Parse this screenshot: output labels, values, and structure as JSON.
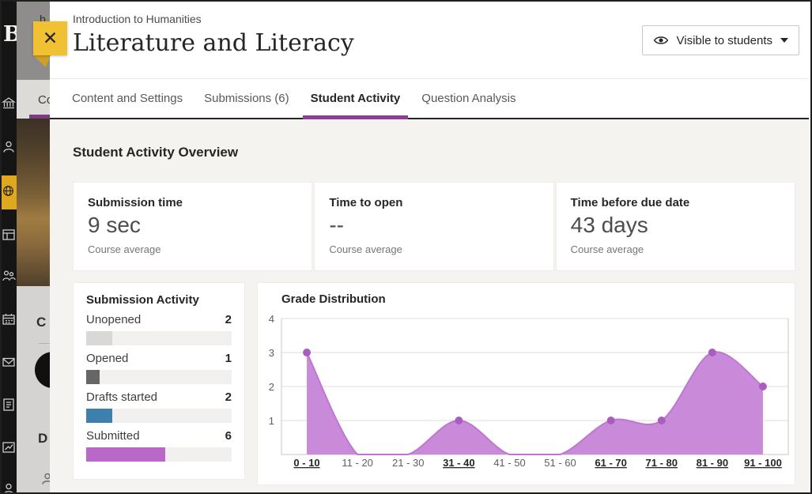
{
  "header": {
    "course_name": "Introduction to Humanities",
    "title": "Literature and Literacy",
    "visibility_button": {
      "label": "Visible to students",
      "icon": "eye-icon",
      "caret": "chevron-down-icon"
    },
    "close_button": {
      "icon": "close-x-icon",
      "glyph": "✕",
      "color": "#f0c233"
    }
  },
  "tabs": [
    {
      "label": "Content and Settings",
      "active": false
    },
    {
      "label": "Submissions (6)",
      "active": false
    },
    {
      "label": "Student Activity",
      "active": true
    },
    {
      "label": "Question Analysis",
      "active": false
    }
  ],
  "accent_colors": {
    "tab_underline": "#8c3f95",
    "tab_bar_line": "#262626",
    "content_bg": "#f5f3f0"
  },
  "overview": {
    "heading": "Student Activity Overview",
    "stats": [
      {
        "label": "Submission time",
        "value": "9 sec",
        "caption": "Course average"
      },
      {
        "label": "Time to open",
        "value": "--",
        "caption": "Course average"
      },
      {
        "label": "Time before due date",
        "value": "43 days",
        "caption": "Course average"
      }
    ]
  },
  "submission_activity": {
    "title": "Submission Activity",
    "items": [
      {
        "label": "Unopened",
        "value": 2,
        "color": "#d9d8d6"
      },
      {
        "label": "Opened",
        "value": 1,
        "color": "#666666"
      },
      {
        "label": "Drafts started",
        "value": 2,
        "color": "#3f7fad"
      },
      {
        "label": "Submitted",
        "value": 6,
        "color": "#b968c7"
      }
    ]
  },
  "chart_data": {
    "type": "area",
    "title": "Grade Distribution",
    "categories": [
      "0 - 10",
      "11 - 20",
      "21 - 30",
      "31 - 40",
      "41 - 50",
      "51 - 60",
      "61 - 70",
      "71 - 80",
      "81 - 90",
      "91 - 100"
    ],
    "values": [
      3,
      0,
      0,
      1,
      0,
      0,
      1,
      1,
      3,
      2
    ],
    "linked_categories": [
      true,
      false,
      false,
      true,
      false,
      false,
      true,
      true,
      true,
      true
    ],
    "xlabel": "",
    "ylabel": "",
    "ylim": [
      0,
      4
    ],
    "yticks": [
      1,
      2,
      3,
      4
    ],
    "grid": true,
    "legend": "none",
    "colors": {
      "fill": "#c98bd9",
      "stroke": "#bd77cf",
      "dot": "#a95dbe",
      "grid": "#dfddda",
      "axis": "#c9c7c4",
      "tick_text": "#5f5f5f",
      "link_text": "#262626"
    }
  },
  "sidebar": {
    "icons": [
      "blackboard-b-logo",
      "institution-icon",
      "person-icon",
      "globe-icon",
      "window-icon",
      "people-group-icon",
      "calendar-icon",
      "envelope-icon",
      "document-icon",
      "chart-box-icon",
      "person-partial-icon"
    ],
    "logo_letter": "B",
    "active_icon_bg": "#dfa91f"
  },
  "underlay": {
    "fragments": {
      "breadcrumb": "b",
      "tab": "Co",
      "heading": "C",
      "details": "D"
    }
  }
}
